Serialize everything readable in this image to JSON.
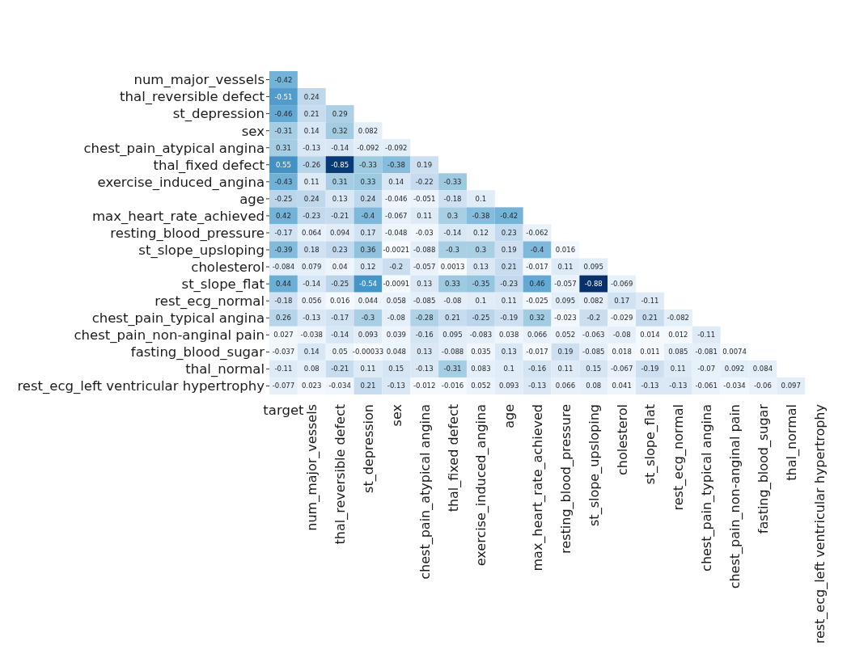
{
  "chart_data": {
    "type": "heatmap",
    "data_labels": true,
    "categories": [
      "target",
      "num_major_vessels",
      "thal_reversible defect",
      "st_depression",
      "sex",
      "chest_pain_atypical angina",
      "thal_fixed defect",
      "exercise_induced_angina",
      "age",
      "max_heart_rate_achieved",
      "resting_blood_pressure",
      "st_slope_upsloping",
      "cholesterol",
      "st_slope_flat",
      "rest_ecg_normal",
      "chest_pain_typical angina",
      "chest_pain_non-anginal pain",
      "fasting_blood_sugar",
      "thal_normal",
      "rest_ecg_left ventricular hypertrophy"
    ],
    "y_categories": [
      "num_major_vessels",
      "thal_reversible defect",
      "st_depression",
      "sex",
      "chest_pain_atypical angina",
      "thal_fixed defect",
      "exercise_induced_angina",
      "age",
      "max_heart_rate_achieved",
      "resting_blood_pressure",
      "st_slope_upsloping",
      "cholesterol",
      "st_slope_flat",
      "rest_ecg_normal",
      "chest_pain_typical angina",
      "chest_pain_non-anginal pain",
      "fasting_blood_sugar",
      "thal_normal",
      "rest_ecg_left ventricular hypertrophy"
    ],
    "cells": [
      [
        -0.42,
        null,
        null,
        null,
        null,
        null,
        null,
        null,
        null,
        null,
        null,
        null,
        null,
        null,
        null,
        null,
        null,
        null,
        null,
        null
      ],
      [
        -0.51,
        0.24,
        null,
        null,
        null,
        null,
        null,
        null,
        null,
        null,
        null,
        null,
        null,
        null,
        null,
        null,
        null,
        null,
        null,
        null
      ],
      [
        -0.46,
        0.21,
        0.29,
        null,
        null,
        null,
        null,
        null,
        null,
        null,
        null,
        null,
        null,
        null,
        null,
        null,
        null,
        null,
        null,
        null
      ],
      [
        -0.31,
        0.14,
        0.32,
        0.082,
        null,
        null,
        null,
        null,
        null,
        null,
        null,
        null,
        null,
        null,
        null,
        null,
        null,
        null,
        null,
        null
      ],
      [
        0.31,
        -0.13,
        -0.14,
        -0.092,
        -0.092,
        null,
        null,
        null,
        null,
        null,
        null,
        null,
        null,
        null,
        null,
        null,
        null,
        null,
        null,
        null
      ],
      [
        0.55,
        -0.26,
        -0.85,
        -0.33,
        -0.38,
        0.19,
        null,
        null,
        null,
        null,
        null,
        null,
        null,
        null,
        null,
        null,
        null,
        null,
        null,
        null
      ],
      [
        -0.43,
        0.11,
        0.31,
        0.33,
        0.14,
        -0.22,
        -0.33,
        null,
        null,
        null,
        null,
        null,
        null,
        null,
        null,
        null,
        null,
        null,
        null,
        null
      ],
      [
        -0.25,
        0.24,
        0.13,
        0.24,
        -0.046,
        -0.051,
        -0.18,
        0.1,
        null,
        null,
        null,
        null,
        null,
        null,
        null,
        null,
        null,
        null,
        null,
        null
      ],
      [
        0.42,
        -0.23,
        -0.21,
        -0.4,
        -0.067,
        0.11,
        0.3,
        -0.38,
        -0.42,
        null,
        null,
        null,
        null,
        null,
        null,
        null,
        null,
        null,
        null,
        null
      ],
      [
        -0.17,
        0.064,
        0.094,
        0.17,
        -0.048,
        -0.03,
        -0.14,
        0.12,
        0.23,
        -0.062,
        null,
        null,
        null,
        null,
        null,
        null,
        null,
        null,
        null,
        null
      ],
      [
        -0.39,
        0.18,
        0.23,
        0.36,
        -0.0021,
        -0.088,
        -0.3,
        0.3,
        0.19,
        -0.4,
        0.016,
        null,
        null,
        null,
        null,
        null,
        null,
        null,
        null,
        null
      ],
      [
        -0.084,
        0.079,
        0.04,
        0.12,
        -0.2,
        -0.057,
        0.0013,
        0.13,
        0.21,
        -0.017,
        0.11,
        0.095,
        null,
        null,
        null,
        null,
        null,
        null,
        null,
        null
      ],
      [
        0.44,
        -0.14,
        -0.25,
        -0.54,
        -0.0091,
        0.13,
        0.33,
        -0.35,
        -0.23,
        0.46,
        -0.057,
        -0.88,
        -0.069,
        null,
        null,
        null,
        null,
        null,
        null,
        null
      ],
      [
        -0.18,
        0.056,
        0.016,
        0.044,
        0.058,
        -0.085,
        -0.08,
        0.1,
        0.11,
        -0.025,
        0.095,
        0.082,
        0.17,
        -0.11,
        null,
        null,
        null,
        null,
        null,
        null
      ],
      [
        0.26,
        -0.13,
        -0.17,
        -0.3,
        -0.08,
        -0.28,
        0.21,
        -0.25,
        -0.19,
        0.32,
        -0.023,
        -0.2,
        -0.029,
        0.21,
        -0.082,
        null,
        null,
        null,
        null,
        null
      ],
      [
        0.027,
        -0.038,
        -0.14,
        0.093,
        0.039,
        -0.16,
        0.095,
        -0.083,
        0.038,
        0.066,
        0.052,
        -0.063,
        -0.08,
        0.014,
        0.012,
        -0.11,
        null,
        null,
        null,
        null
      ],
      [
        -0.037,
        0.14,
        0.05,
        -0.00033,
        0.048,
        0.13,
        -0.088,
        0.035,
        0.13,
        -0.017,
        0.19,
        -0.085,
        0.018,
        0.011,
        0.085,
        -0.081,
        0.0074,
        null,
        null,
        null
      ],
      [
        -0.11,
        0.08,
        -0.21,
        0.11,
        0.15,
        -0.13,
        -0.31,
        0.083,
        0.1,
        -0.16,
        0.11,
        0.15,
        -0.067,
        -0.19,
        0.11,
        -0.07,
        0.092,
        0.084,
        null,
        null
      ],
      [
        -0.077,
        0.023,
        -0.034,
        0.21,
        -0.13,
        -0.012,
        -0.016,
        0.052,
        0.093,
        -0.13,
        0.066,
        0.08,
        0.041,
        -0.13,
        -0.13,
        -0.061,
        -0.034,
        -0.06,
        0.097,
        null
      ]
    ]
  }
}
